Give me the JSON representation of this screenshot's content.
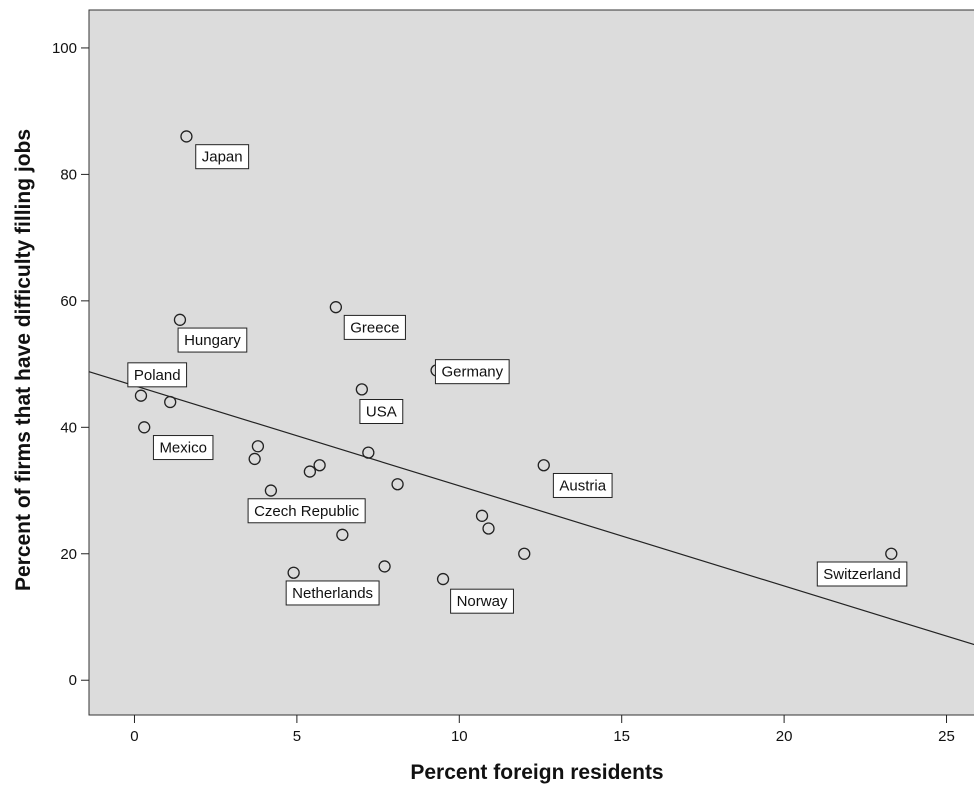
{
  "chart_data": {
    "type": "scatter",
    "title": "",
    "xlabel": "Percent foreign residents",
    "ylabel": "Percent of firms that have difficulty filling jobs",
    "xlim": [
      -1.4,
      26
    ],
    "ylim": [
      -5.5,
      106
    ],
    "xticks": [
      0,
      5,
      10,
      15,
      20,
      25
    ],
    "yticks": [
      0,
      20,
      40,
      60,
      80,
      100
    ],
    "grid": false,
    "fit_line": {
      "type": "linear",
      "x": [
        -1.4,
        26
      ],
      "y": [
        48.8,
        5.4
      ]
    },
    "points": [
      {
        "x": 1.6,
        "y": 86,
        "label": "Japan"
      },
      {
        "x": 6.2,
        "y": 59,
        "label": "Greece"
      },
      {
        "x": 1.4,
        "y": 57,
        "label": "Hungary"
      },
      {
        "x": 9.3,
        "y": 49,
        "label": "Germany"
      },
      {
        "x": 7.0,
        "y": 46,
        "label": "USA"
      },
      {
        "x": 0.2,
        "y": 45,
        "label": "Poland"
      },
      {
        "x": 1.1,
        "y": 44,
        "label": ""
      },
      {
        "x": 0.3,
        "y": 40,
        "label": "Mexico"
      },
      {
        "x": 3.8,
        "y": 37,
        "label": ""
      },
      {
        "x": 7.2,
        "y": 36,
        "label": ""
      },
      {
        "x": 3.7,
        "y": 35,
        "label": ""
      },
      {
        "x": 12.6,
        "y": 34,
        "label": "Austria"
      },
      {
        "x": 5.7,
        "y": 34,
        "label": ""
      },
      {
        "x": 5.4,
        "y": 33,
        "label": ""
      },
      {
        "x": 8.1,
        "y": 31,
        "label": ""
      },
      {
        "x": 4.2,
        "y": 30,
        "label": "Czech Republic"
      },
      {
        "x": 10.7,
        "y": 26,
        "label": ""
      },
      {
        "x": 10.9,
        "y": 24,
        "label": ""
      },
      {
        "x": 6.4,
        "y": 23,
        "label": ""
      },
      {
        "x": 12.0,
        "y": 20,
        "label": ""
      },
      {
        "x": 23.3,
        "y": 20,
        "label": "Switzerland"
      },
      {
        "x": 7.7,
        "y": 18,
        "label": ""
      },
      {
        "x": 4.9,
        "y": 17,
        "label": "Netherlands"
      },
      {
        "x": 9.5,
        "y": 16,
        "label": "Norway"
      }
    ],
    "labels": [
      {
        "text": "Japan",
        "x": 2.7,
        "y": 82.8
      },
      {
        "text": "Greece",
        "x": 7.4,
        "y": 55.8
      },
      {
        "text": "Hungary",
        "x": 2.4,
        "y": 53.8
      },
      {
        "text": "Germany",
        "x": 10.4,
        "y": 48.8
      },
      {
        "text": "USA",
        "x": 7.6,
        "y": 42.5
      },
      {
        "text": "Poland",
        "x": 0.7,
        "y": 48.3
      },
      {
        "text": "Mexico",
        "x": 1.5,
        "y": 36.8
      },
      {
        "text": "Austria",
        "x": 13.8,
        "y": 30.8
      },
      {
        "text": "Czech Republic",
        "x": 5.3,
        "y": 26.8
      },
      {
        "text": "Switzerland",
        "x": 22.4,
        "y": 16.8
      },
      {
        "text": "Netherlands",
        "x": 6.1,
        "y": 13.8
      },
      {
        "text": "Norway",
        "x": 10.7,
        "y": 12.5
      }
    ]
  }
}
